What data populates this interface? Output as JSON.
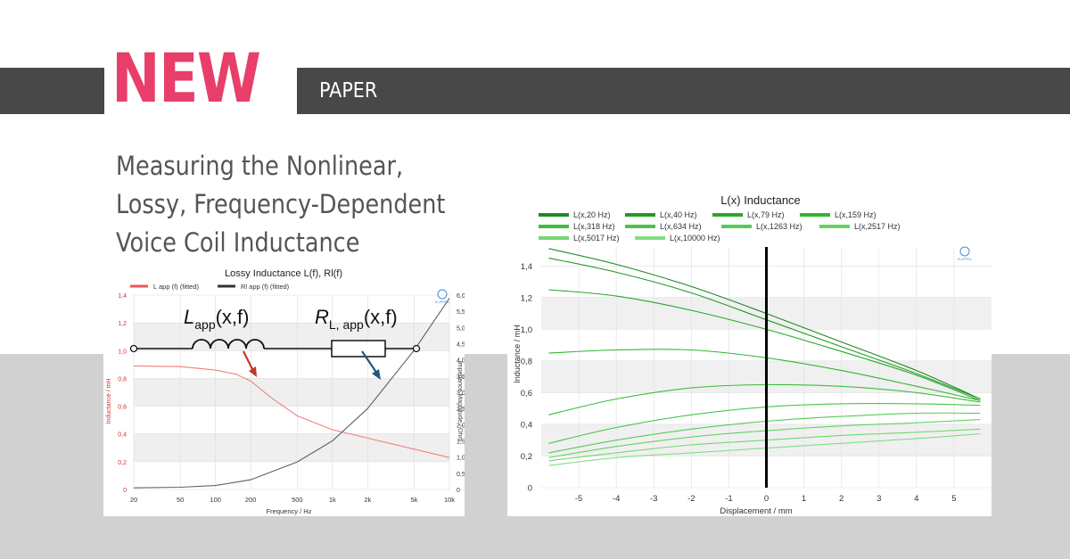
{
  "banner": {
    "new_label": "NEW",
    "tag_label": "PAPER",
    "title_lines": [
      "Measuring the Nonlinear,",
      "Lossy, Frequency-Dependent",
      "Voice Coil Inductance"
    ]
  },
  "colors": {
    "accent": "#e83e6a",
    "bar": "#484848",
    "band": "#d1d1d1",
    "title_text": "#555555",
    "L_curve": "#f08080",
    "R_curve": "#606060",
    "arrow_red": "#c0392b",
    "arrow_blue": "#1f5a7a"
  },
  "chart_data": [
    {
      "type": "line",
      "title": "Lossy Inductance L(f), Rl(f)",
      "legend": [
        "L app (f) (fitted)",
        "Rl app (f) (fitted)"
      ],
      "legend_position": "top",
      "xlabel": "Frequency / Hz",
      "ylabel_left": "Inductance / mH",
      "ylabel_right": "Impedance Magnitude / Ohm",
      "x_scale": "log",
      "x_ticks": [
        "20",
        "50",
        "100",
        "200",
        "500",
        "1k",
        "2k",
        "5k",
        "10k"
      ],
      "y_left_ticks": [
        "0",
        "0,2",
        "0,4",
        "0,6",
        "0,8",
        "1,0",
        "1,2",
        "1,4"
      ],
      "y_right_ticks": [
        "0",
        "0,5",
        "1,0",
        "1,5",
        "2,0",
        "2,5",
        "3,0",
        "3,5",
        "4,0",
        "4,5",
        "5,0",
        "5,5",
        "6,0"
      ],
      "ylim_left": [
        0,
        1.4
      ],
      "ylim_right": [
        0,
        6.0
      ],
      "xlim": [
        20,
        10000
      ],
      "series": [
        {
          "name": "L app (f) (fitted)",
          "axis": "left",
          "x": [
            20,
            50,
            100,
            150,
            200,
            300,
            500,
            1000,
            2000,
            5000,
            10000
          ],
          "values": [
            0.89,
            0.885,
            0.86,
            0.83,
            0.78,
            0.66,
            0.53,
            0.43,
            0.37,
            0.29,
            0.23
          ]
        },
        {
          "name": "Rl app (f) (fitted)",
          "axis": "right",
          "x": [
            20,
            50,
            100,
            200,
            500,
            1000,
            2000,
            5000,
            10000
          ],
          "values": [
            0.05,
            0.07,
            0.12,
            0.3,
            0.85,
            1.5,
            2.5,
            4.3,
            5.9
          ]
        }
      ],
      "diagram": {
        "inductor_label_main": "L",
        "inductor_label_sub": "app",
        "inductor_label_args": "(x,f)",
        "resistor_label_main": "R",
        "resistor_label_sub": "L, app",
        "resistor_label_args": "(x,f)"
      },
      "logo": "KLIPPEL"
    },
    {
      "type": "line",
      "title": "L(x) Inductance",
      "legend_position": "top",
      "xlabel": "Displacement / mm",
      "ylabel": "Inductance / mH",
      "x_ticks": [
        "-5",
        "-4",
        "-3",
        "-2",
        "-1",
        "0",
        "1",
        "2",
        "3",
        "4",
        "5"
      ],
      "y_ticks": [
        "0",
        "0,2",
        "0,4",
        "0,6",
        "0,8",
        "1,0",
        "1,2",
        "1,4"
      ],
      "xlim": [
        -6,
        6
      ],
      "ylim": [
        0,
        1.52
      ],
      "marker_x": 0,
      "x": [
        -5.8,
        -4,
        -2,
        0,
        2,
        4,
        5.7
      ],
      "series": [
        {
          "name": "L(x,20 Hz)",
          "color": "#1e8a1e",
          "values": [
            1.51,
            1.41,
            1.27,
            1.1,
            0.92,
            0.74,
            0.56
          ]
        },
        {
          "name": "L(x,40 Hz)",
          "color": "#239a23",
          "values": [
            1.45,
            1.36,
            1.23,
            1.06,
            0.89,
            0.72,
            0.56
          ]
        },
        {
          "name": "L(x,79 Hz)",
          "color": "#29a829",
          "values": [
            1.25,
            1.21,
            1.12,
            1.0,
            0.86,
            0.71,
            0.55
          ]
        },
        {
          "name": "L(x,159 Hz)",
          "color": "#33b533",
          "values": [
            0.85,
            0.87,
            0.87,
            0.82,
            0.74,
            0.64,
            0.55
          ]
        },
        {
          "name": "L(x,318 Hz)",
          "color": "#3dbd3d",
          "values": [
            0.46,
            0.56,
            0.63,
            0.65,
            0.64,
            0.6,
            0.54
          ]
        },
        {
          "name": "L(x,634 Hz)",
          "color": "#48c548",
          "values": [
            0.28,
            0.38,
            0.46,
            0.51,
            0.53,
            0.53,
            0.52
          ]
        },
        {
          "name": "L(x,1263 Hz)",
          "color": "#55cc55",
          "values": [
            0.22,
            0.3,
            0.37,
            0.42,
            0.45,
            0.47,
            0.47
          ]
        },
        {
          "name": "L(x,2517 Hz)",
          "color": "#63d263",
          "values": [
            0.19,
            0.26,
            0.32,
            0.36,
            0.39,
            0.41,
            0.43
          ]
        },
        {
          "name": "L(x,5017 Hz)",
          "color": "#72d872",
          "values": [
            0.17,
            0.22,
            0.27,
            0.3,
            0.33,
            0.35,
            0.37
          ]
        },
        {
          "name": "L(x,10000 Hz)",
          "color": "#82de82",
          "values": [
            0.14,
            0.19,
            0.22,
            0.25,
            0.28,
            0.31,
            0.34
          ]
        }
      ],
      "logo": "KLIPPEL"
    }
  ]
}
